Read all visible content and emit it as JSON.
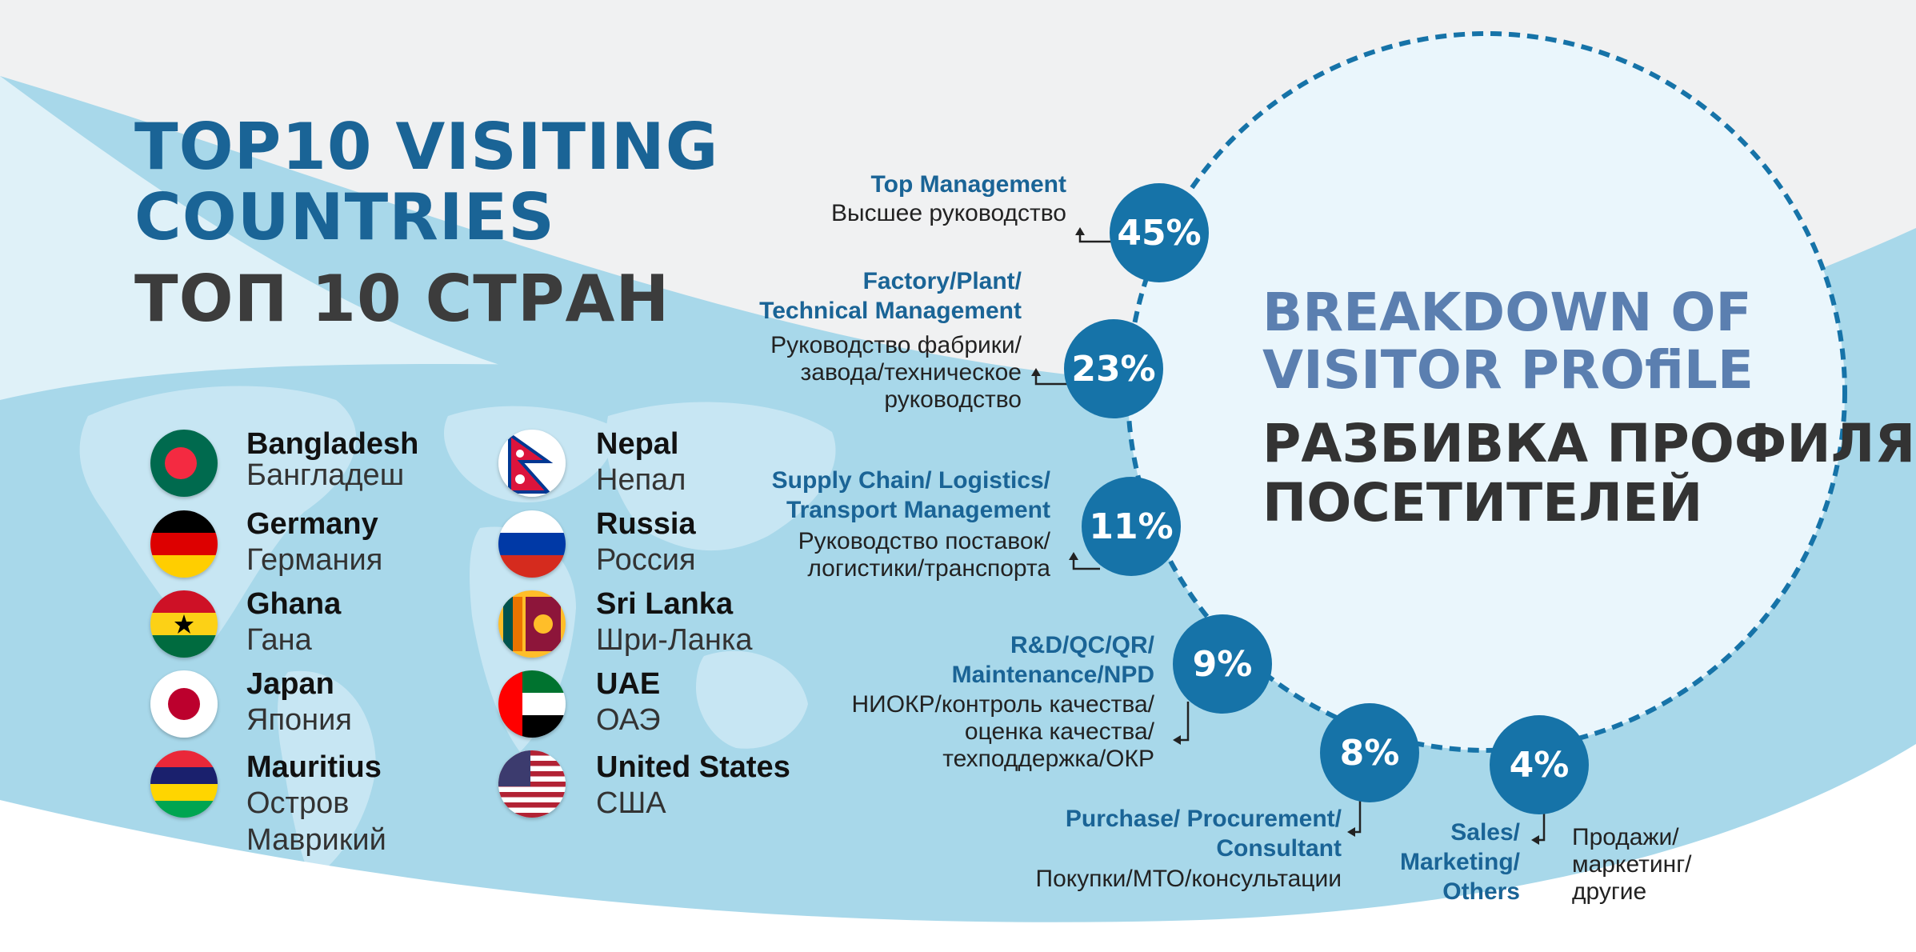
{
  "left": {
    "title_en_line1": "TOP10 VISITING",
    "title_en_line2": "COUNTRIES",
    "title_ru": "ТОП 10 СТРАН",
    "countries": [
      {
        "en": "Bangladesh",
        "ru": "Бангладеш",
        "flag": "bangladesh-flag"
      },
      {
        "en": "Germany",
        "ru": "Германия",
        "flag": "germany-flag"
      },
      {
        "en": "Ghana",
        "ru": "Гана",
        "flag": "ghana-flag"
      },
      {
        "en": "Japan",
        "ru": "Япония",
        "flag": "japan-flag"
      },
      {
        "en": "Mauritius",
        "ru": "Остров\nМаврикий",
        "flag": "mauritius-flag"
      },
      {
        "en": "Nepal",
        "ru": "Непал",
        "flag": "nepal-flag"
      },
      {
        "en": "Russia",
        "ru": "Россия",
        "flag": "russia-flag"
      },
      {
        "en": "Sri Lanka",
        "ru": "Шри-Ланка",
        "flag": "sri-lanka-flag"
      },
      {
        "en": "UAE",
        "ru": "ОАЭ",
        "flag": "uae-flag"
      },
      {
        "en": "United States",
        "ru": "США",
        "flag": "usa-flag"
      }
    ]
  },
  "right": {
    "title_en_line1": "BREAKDOWN OF",
    "title_en_line2": "VISITOR PROfiLE",
    "title_ru_line1": "РАЗБИВКА ПРОФИЛЯ",
    "title_ru_line2": "ПОСЕТИТЕЛЕЙ",
    "segments": [
      {
        "percent": "45%",
        "en": "Top Management",
        "ru": "Высшее руководство"
      },
      {
        "percent": "23%",
        "en": "Factory/Plant/\nTechnical  Management",
        "ru": "Руководство фабрики/\nзавода/техническое\nруководство"
      },
      {
        "percent": "11%",
        "en": "Supply Chain/ Logistics/\nTransport  Management",
        "ru": "Руководство поставок/\nлогистики/транспорта"
      },
      {
        "percent": "9%",
        "en": "R&D/QC/QR/\nMaintenance/NPD",
        "ru": "НИОКР/контроль качества/\nоценка качества/\nтехподдержка/ОКР"
      },
      {
        "percent": "8%",
        "en": "Purchase/ Procurement/\nConsultant",
        "ru": "Покупки/МТО/консультации"
      },
      {
        "percent": "4%",
        "en": "Sales/\nMarketing/\nOthers",
        "ru": "Продажи/\nмаркетинг/\nдругие"
      }
    ]
  },
  "colors": {
    "accent": "#1673a8",
    "title_blue": "#1a6496",
    "light_blue": "#a9d8ea",
    "pale_blue": "#e3f3fa"
  }
}
